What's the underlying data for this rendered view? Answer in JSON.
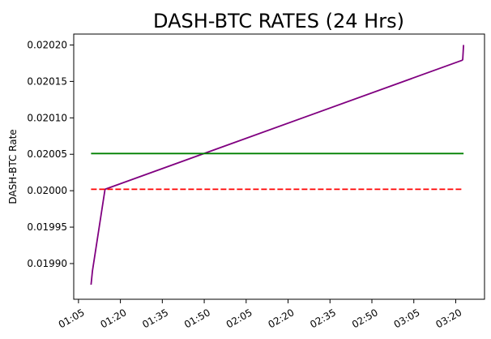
{
  "chart_data": {
    "type": "line",
    "title": "DASH-BTC RATES (24 Hrs)",
    "xlabel": "",
    "ylabel": "DASH-BTC Rate",
    "x_tick_labels": [
      "01:05",
      "01:20",
      "01:35",
      "01:50",
      "02:05",
      "02:20",
      "02:35",
      "02:50",
      "03:05",
      "03:20"
    ],
    "x_ticks_minutes": [
      65,
      80,
      95,
      110,
      125,
      140,
      155,
      170,
      185,
      200
    ],
    "xlim_minutes": [
      63.3,
      210.3
    ],
    "y_ticks": [
      0.0199,
      0.01995,
      0.02,
      0.02005,
      0.0201,
      0.02015,
      0.0202
    ],
    "y_tick_labels": [
      "0.01990",
      "0.01995",
      "0.02000",
      "0.02005",
      "0.02010",
      "0.02015",
      "0.02020"
    ],
    "ylim": [
      0.019851,
      0.020215
    ],
    "grid": false,
    "series": [
      {
        "color": "#800080",
        "style": "solid",
        "points": [
          [
            69.5,
            0.019871
          ],
          [
            70.0,
            0.01989
          ],
          [
            74.5,
            0.020002
          ],
          [
            202.3,
            0.020179
          ],
          [
            202.5,
            0.02018
          ],
          [
            202.8,
            0.0202
          ]
        ]
      },
      {
        "color": "#008000",
        "style": "solid",
        "points": [
          [
            69.5,
            0.020051
          ],
          [
            202.8,
            0.020051
          ]
        ]
      },
      {
        "color": "#ff0000",
        "style": "dashed",
        "points": [
          [
            69.5,
            0.020002
          ],
          [
            202.8,
            0.020002
          ]
        ]
      }
    ]
  }
}
